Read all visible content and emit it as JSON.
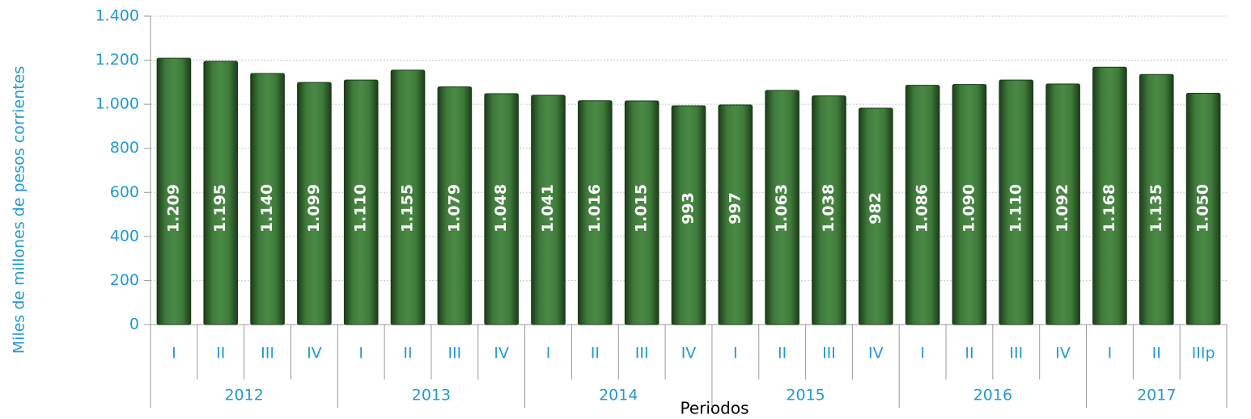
{
  "chart_data": {
    "type": "bar",
    "y_label": "Miles de millones de pesos corrientes",
    "x_label": "Periodos",
    "categories": [
      "I",
      "II",
      "III",
      "IV",
      "I",
      "II",
      "III",
      "IV",
      "I",
      "II",
      "III",
      "IV",
      "I",
      "II",
      "III",
      "IV",
      "I",
      "II",
      "III",
      "IV",
      "I",
      "II",
      "IIIp"
    ],
    "groups": [
      {
        "label": "2012",
        "count": 4
      },
      {
        "label": "2013",
        "count": 4
      },
      {
        "label": "2014",
        "count": 4
      },
      {
        "label": "2015",
        "count": 4
      },
      {
        "label": "2016",
        "count": 4
      },
      {
        "label": "2017",
        "count": 3
      }
    ],
    "values": [
      1209,
      1195,
      1140,
      1099,
      1110,
      1155,
      1079,
      1048,
      1041,
      1016,
      1015,
      993,
      997,
      1063,
      1038,
      982,
      1086,
      1090,
      1110,
      1092,
      1168,
      1135,
      1050
    ],
    "value_labels": [
      "1.209",
      "1.195",
      "1.140",
      "1.099",
      "1.110",
      "1.155",
      "1.079",
      "1.048",
      "1.041",
      "1.016",
      "1.015",
      "993",
      "997",
      "1.063",
      "1.038",
      "982",
      "1.086",
      "1.090",
      "1.110",
      "1.092",
      "1.168",
      "1.135",
      "1.050"
    ],
    "color": "#2e6b2a",
    "ylim": [
      0,
      1400
    ],
    "yticks": [
      0,
      200,
      400,
      600,
      800,
      {
        "value": 1000,
        "label": "1.000"
      },
      {
        "value": 1200,
        "label": "1.200"
      },
      {
        "value": 1400,
        "label": "1.400"
      }
    ],
    "grid": true
  }
}
